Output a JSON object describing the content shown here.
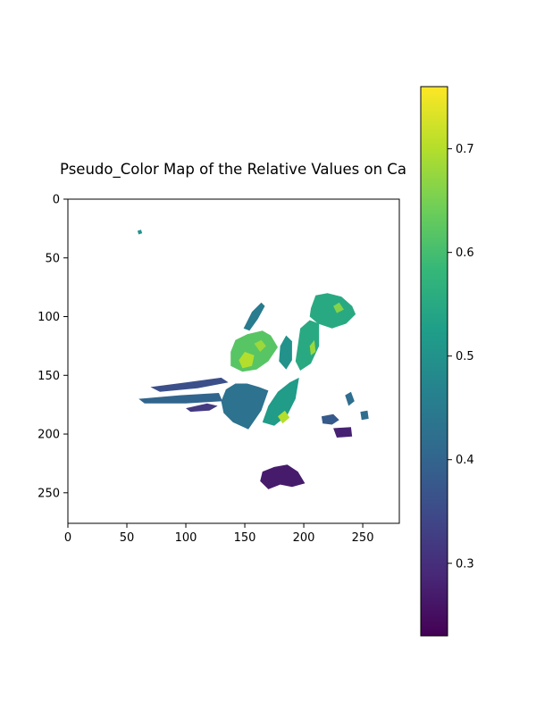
{
  "chart_data": {
    "type": "heatmap",
    "title": "Pseudo_Color Map of the Relative Values on Ca",
    "xlabel": "",
    "ylabel": "",
    "xlim": [
      0,
      281
    ],
    "ylim": [
      276,
      0
    ],
    "x_ticks": [
      0,
      50,
      100,
      150,
      200,
      250
    ],
    "y_ticks": [
      0,
      50,
      100,
      150,
      200,
      250
    ],
    "x_tick_labels": [
      "0",
      "50",
      "100",
      "150",
      "200",
      "250"
    ],
    "y_tick_labels": [
      "0",
      "50",
      "100",
      "150",
      "200",
      "250"
    ],
    "colormap": "viridis",
    "colorbar": {
      "min": 0.23,
      "max": 0.76,
      "ticks": [
        0.3,
        0.4,
        0.5,
        0.6,
        0.7
      ],
      "tick_labels": [
        "0.3",
        "0.4",
        "0.5",
        "0.6",
        "0.7"
      ]
    },
    "regions": [
      {
        "name": "upper-right-leaf",
        "value": 0.55,
        "points": [
          [
            206,
            93
          ],
          [
            210,
            82
          ],
          [
            220,
            80
          ],
          [
            232,
            83
          ],
          [
            241,
            91
          ],
          [
            244,
            98
          ],
          [
            236,
            106
          ],
          [
            224,
            110
          ],
          [
            212,
            106
          ],
          [
            205,
            100
          ]
        ]
      },
      {
        "name": "upper-center-leaf",
        "value": 0.62,
        "points": [
          [
            138,
            130
          ],
          [
            142,
            120
          ],
          [
            152,
            115
          ],
          [
            165,
            112
          ],
          [
            172,
            116
          ],
          [
            178,
            126
          ],
          [
            170,
            138
          ],
          [
            160,
            145
          ],
          [
            148,
            147
          ],
          [
            138,
            142
          ]
        ]
      },
      {
        "name": "center-narrow-leaf",
        "value": 0.55,
        "points": [
          [
            197,
            110
          ],
          [
            205,
            103
          ],
          [
            213,
            106
          ],
          [
            213,
            125
          ],
          [
            206,
            140
          ],
          [
            197,
            146
          ],
          [
            193,
            138
          ],
          [
            195,
            124
          ]
        ]
      },
      {
        "name": "middle-small-leaf",
        "value": 0.5,
        "points": [
          [
            180,
            125
          ],
          [
            185,
            116
          ],
          [
            190,
            121
          ],
          [
            190,
            137
          ],
          [
            185,
            145
          ],
          [
            179,
            138
          ]
        ]
      },
      {
        "name": "stem-leaf",
        "value": 0.45,
        "points": [
          [
            149,
            110
          ],
          [
            156,
            96
          ],
          [
            164,
            88
          ],
          [
            167,
            91
          ],
          [
            161,
            102
          ],
          [
            154,
            112
          ]
        ]
      },
      {
        "name": "lower-left-leaf",
        "value": 0.43,
        "points": [
          [
            130,
            172
          ],
          [
            134,
            162
          ],
          [
            142,
            157
          ],
          [
            152,
            157
          ],
          [
            162,
            160
          ],
          [
            170,
            163
          ],
          [
            164,
            180
          ],
          [
            153,
            196
          ],
          [
            140,
            190
          ],
          [
            132,
            182
          ]
        ]
      },
      {
        "name": "lower-right-leaf",
        "value": 0.52,
        "points": [
          [
            165,
            190
          ],
          [
            170,
            176
          ],
          [
            178,
            164
          ],
          [
            188,
            156
          ],
          [
            196,
            152
          ],
          [
            193,
            170
          ],
          [
            186,
            184
          ],
          [
            175,
            193
          ]
        ]
      },
      {
        "name": "left-strip",
        "value": 0.36,
        "points": [
          [
            70,
            160
          ],
          [
            100,
            156
          ],
          [
            130,
            152
          ],
          [
            136,
            156
          ],
          [
            110,
            161
          ],
          [
            78,
            164
          ]
        ]
      },
      {
        "name": "far-left-strip",
        "value": 0.4,
        "points": [
          [
            60,
            170
          ],
          [
            95,
            167
          ],
          [
            128,
            165
          ],
          [
            131,
            172
          ],
          [
            100,
            174
          ],
          [
            65,
            174
          ]
        ]
      },
      {
        "name": "right-blob",
        "value": 0.38,
        "points": [
          [
            215,
            185
          ],
          [
            225,
            183
          ],
          [
            230,
            188
          ],
          [
            224,
            192
          ],
          [
            216,
            191
          ]
        ]
      },
      {
        "name": "dark-bottom-right-blob",
        "value": 0.28,
        "points": [
          [
            225,
            195
          ],
          [
            240,
            194
          ],
          [
            241,
            202
          ],
          [
            228,
            203
          ]
        ]
      },
      {
        "name": "right-small-blob",
        "value": 0.42,
        "points": [
          [
            235,
            167
          ],
          [
            240,
            164
          ],
          [
            243,
            172
          ],
          [
            238,
            176
          ]
        ]
      },
      {
        "name": "far-right-blob",
        "value": 0.42,
        "points": [
          [
            248,
            181
          ],
          [
            254,
            180
          ],
          [
            255,
            187
          ],
          [
            249,
            188
          ]
        ]
      },
      {
        "name": "bottom-dark-shape",
        "value": 0.27,
        "points": [
          [
            165,
            232
          ],
          [
            175,
            228
          ],
          [
            186,
            226
          ],
          [
            195,
            232
          ],
          [
            201,
            242
          ],
          [
            190,
            245
          ],
          [
            180,
            243
          ],
          [
            170,
            247
          ],
          [
            163,
            240
          ]
        ]
      },
      {
        "name": "small-speck-top",
        "value": 0.5,
        "points": [
          [
            59,
            27
          ],
          [
            62,
            26
          ],
          [
            63,
            29
          ],
          [
            60,
            30
          ]
        ]
      },
      {
        "name": "mid-dark-band",
        "value": 0.32,
        "points": [
          [
            100,
            178
          ],
          [
            118,
            174
          ],
          [
            127,
            176
          ],
          [
            120,
            180
          ],
          [
            104,
            181
          ]
        ]
      }
    ],
    "highlights": [
      {
        "value": 0.7,
        "points": [
          [
            145,
            137
          ],
          [
            150,
            130
          ],
          [
            158,
            133
          ],
          [
            156,
            142
          ],
          [
            148,
            144
          ]
        ]
      },
      {
        "value": 0.68,
        "points": [
          [
            158,
            123
          ],
          [
            164,
            120
          ],
          [
            168,
            125
          ],
          [
            163,
            130
          ]
        ]
      },
      {
        "value": 0.7,
        "points": [
          [
            178,
            185
          ],
          [
            184,
            180
          ],
          [
            188,
            186
          ],
          [
            182,
            191
          ]
        ]
      },
      {
        "value": 0.66,
        "points": [
          [
            225,
            91
          ],
          [
            230,
            88
          ],
          [
            234,
            94
          ],
          [
            228,
            97
          ]
        ]
      },
      {
        "value": 0.68,
        "points": [
          [
            205,
            125
          ],
          [
            209,
            120
          ],
          [
            210,
            130
          ],
          [
            206,
            133
          ]
        ]
      }
    ]
  }
}
